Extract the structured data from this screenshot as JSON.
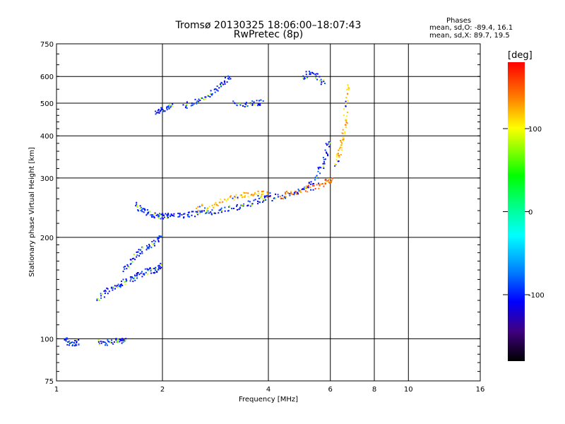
{
  "header": {
    "title": "Tromsø 20130325 18:06:00–18:07:43",
    "subtitle": "RwPretec (8p)"
  },
  "stats": {
    "heading": "Phases",
    "o_line": "mean, sd,O: -89.4, 16.1",
    "x_line": "mean, sd,X:  89.7, 19.5"
  },
  "colorbar": {
    "label": "[deg]",
    "ticks": [
      100,
      0,
      -100
    ],
    "tick_labels": [
      "100",
      "0",
      "-100"
    ],
    "range": [
      -180,
      180
    ]
  },
  "chart_data": {
    "type": "scatter",
    "xlabel": "Frequency [MHz]",
    "ylabel": "Stationary phase Virtual Height [km]",
    "xscale": "log",
    "yscale": "log",
    "xlim": [
      1,
      16
    ],
    "ylim": [
      75,
      750
    ],
    "xticks": [
      1,
      2,
      4,
      6,
      8,
      10,
      16
    ],
    "xtick_labels": [
      "1",
      "2",
      "4",
      "6",
      "8",
      "10",
      "16"
    ],
    "yticks": [
      75,
      100,
      200,
      300,
      400,
      500,
      600,
      750
    ],
    "ytick_labels": [
      "75",
      "100",
      "200",
      "300",
      "400",
      "500",
      "600",
      "750"
    ],
    "grid": true,
    "traces": [
      {
        "name": "",
        "freq": [
          1.05,
          1.1,
          1.15
        ],
        "height": [
          100,
          97,
          98
        ],
        "phase": -100
      },
      {
        "name": "",
        "freq": [
          1.3,
          1.4,
          1.5,
          1.55
        ],
        "height": [
          98,
          98,
          99,
          100
        ],
        "phase": -100
      },
      {
        "name": "",
        "freq": [
          1.3,
          1.4,
          1.5,
          1.6,
          1.7,
          1.8,
          1.9,
          1.95
        ],
        "height": [
          130,
          140,
          145,
          150,
          155,
          160,
          160,
          165
        ],
        "phase": -100
      },
      {
        "name": "",
        "freq": [
          1.55,
          1.65,
          1.75,
          1.85,
          1.95
        ],
        "height": [
          160,
          175,
          185,
          190,
          200
        ],
        "phase": -100
      },
      {
        "name": "",
        "freq": [
          1.68,
          1.75,
          1.85,
          1.95,
          2.0,
          2.1,
          2.3,
          2.5,
          2.7,
          3.0,
          3.3,
          3.6,
          3.9
        ],
        "height": [
          250,
          240,
          235,
          232,
          232,
          232,
          234,
          236,
          238,
          242,
          248,
          255,
          262
        ],
        "phase": -100
      },
      {
        "name": "",
        "freq": [
          2.5,
          2.8,
          3.1,
          3.4,
          3.7,
          4.0
        ],
        "height": [
          245,
          250,
          262,
          268,
          270,
          270
        ],
        "phase": 120
      },
      {
        "name": "",
        "freq": [
          4.0,
          4.5,
          5.0,
          5.4,
          5.7,
          5.9
        ],
        "height": [
          262,
          268,
          280,
          298,
          330,
          380
        ],
        "phase": -100
      },
      {
        "name": "",
        "freq": [
          4.3,
          4.8,
          5.3,
          5.8,
          6.0
        ],
        "height": [
          265,
          275,
          282,
          292,
          298
        ],
        "phase": 140
      },
      {
        "name": "",
        "freq": [
          6.2,
          6.35,
          6.5,
          6.6,
          6.7
        ],
        "height": [
          330,
          360,
          400,
          460,
          560
        ],
        "phase": 120
      },
      {
        "name": "",
        "freq": [
          1.9,
          2.0,
          2.1
        ],
        "height": [
          470,
          480,
          490
        ],
        "phase": -100
      },
      {
        "name": "",
        "freq": [
          2.3,
          2.5,
          2.7,
          2.9,
          3.1
        ],
        "height": [
          490,
          510,
          530,
          560,
          600
        ],
        "phase": -100
      },
      {
        "name": "",
        "freq": [
          3.2,
          3.5,
          3.8
        ],
        "height": [
          500,
          500,
          505
        ],
        "phase": -100
      },
      {
        "name": "",
        "freq": [
          5.0,
          5.3,
          5.7
        ],
        "height": [
          600,
          620,
          580
        ],
        "phase": -100
      }
    ]
  }
}
